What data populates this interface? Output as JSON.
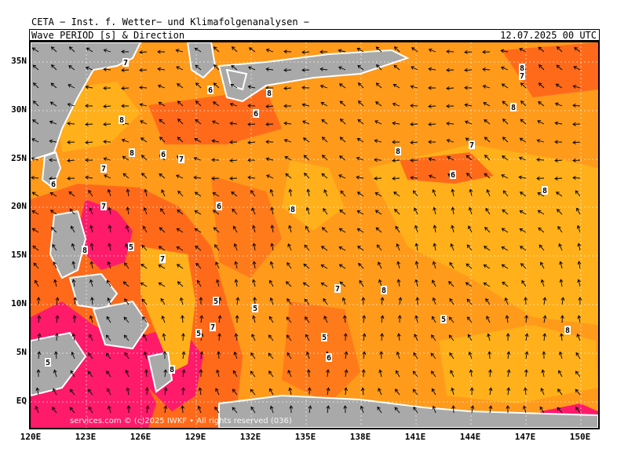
{
  "header": {
    "organization": "CETA − Inst. f. Wetter− und Klimafolgenanalysen −",
    "parameter": "Wave_PERIOD [s] & Direction",
    "valid_time": "12.07.2025 00 UTC"
  },
  "map": {
    "lat_labels": [
      "35N",
      "30N",
      "25N",
      "20N",
      "15N",
      "10N",
      "5N",
      "EQ"
    ],
    "lon_labels": [
      "120E",
      "123E",
      "126E",
      "129E",
      "132E",
      "135E",
      "138E",
      "141E",
      "144E",
      "147E",
      "150E"
    ],
    "watermark": "services.com © (c)2025 IWKF • All rights reserved (036)",
    "period_labels": [
      "8",
      "7",
      "6",
      "8",
      "8",
      "6",
      "8",
      "7",
      "6",
      "8",
      "7",
      "8",
      "6",
      "7",
      "7",
      "8",
      "5",
      "7",
      "6",
      "8",
      "7",
      "8",
      "7",
      "5",
      "5",
      "6",
      "6",
      "8"
    ],
    "colors": {
      "land": "#a9a9a9",
      "period_5": "#ff1a6a",
      "period_6": "#ff5a1a",
      "period_7": "#ff8a1a",
      "period_8": "#ffae1a",
      "arrows": "#000000",
      "grid": "#ffffff"
    }
  }
}
